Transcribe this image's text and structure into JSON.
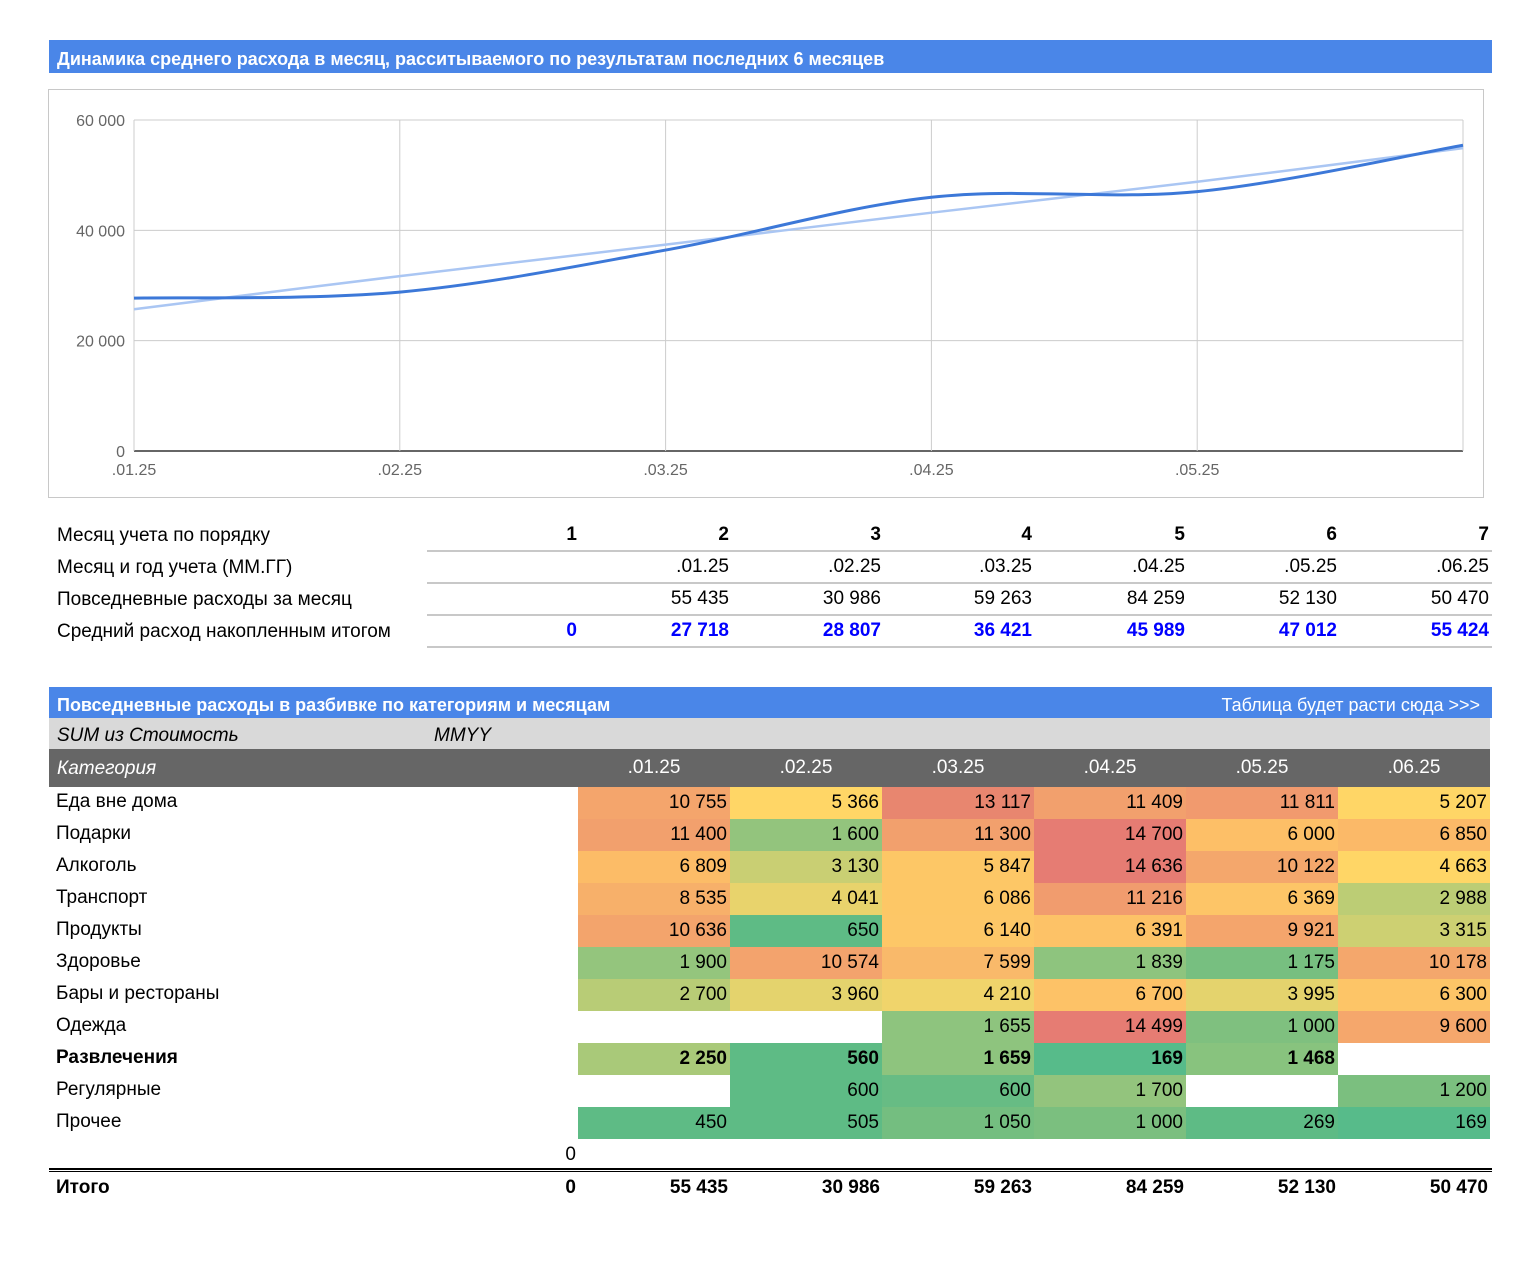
{
  "chart_title": "Динамика среднего расхода в месяц, расситываемого по результатам последних 6 месяцев",
  "chart_data": {
    "type": "line",
    "x": [
      ".01.25",
      ".02.25",
      ".03.25",
      ".04.25",
      ".05.25",
      ".06.25"
    ],
    "series": [
      {
        "values": [
          27718,
          28807,
          36421,
          45989,
          47012,
          55424
        ],
        "color": "#3c78d8"
      },
      {
        "values": [
          25700,
          31700,
          37400,
          43200,
          48800,
          54900
        ],
        "color": "#aac6f3"
      }
    ],
    "xticks": [
      ".01.25",
      ".02.25",
      ".03.25",
      ".04.25",
      ".05.25"
    ],
    "yticks": [
      "0",
      "20 000",
      "40 000",
      "60 000"
    ],
    "ylim": [
      0,
      60000
    ],
    "grid": true
  },
  "stats": {
    "rows": [
      {
        "label": "Месяц учета по порядку",
        "values": [
          "1",
          "2",
          "3",
          "4",
          "5",
          "6",
          "7"
        ],
        "style": "bold"
      },
      {
        "label": "Месяц и год учета (ММ.ГГ)",
        "values": [
          "",
          ".01.25",
          ".02.25",
          ".03.25",
          ".04.25",
          ".05.25",
          ".06.25"
        ],
        "style": ""
      },
      {
        "label": "Повседневные расходы за месяц",
        "values": [
          "",
          "55 435",
          "30 986",
          "59 263",
          "84 259",
          "52 130",
          "50 470"
        ],
        "style": ""
      },
      {
        "label": "Средний расход накопленным итогом",
        "values": [
          "0",
          "27 718",
          "28 807",
          "36 421",
          "45 989",
          "47 012",
          "55 424"
        ],
        "style": "blue"
      }
    ]
  },
  "pivot": {
    "title": "Повседневные расходы в разбивке по категориям и месяцам",
    "title_right": "Таблица будет расти сюда >>>",
    "sum_label": "SUM из Стоимость",
    "mmyy_label": "MMYY",
    "category_label": "Категория",
    "months": [
      ".01.25",
      ".02.25",
      ".03.25",
      ".04.25",
      ".05.25",
      ".06.25"
    ],
    "rows": [
      {
        "name": "Еда вне дома",
        "bold": false,
        "values": [
          "10 755",
          "5 366",
          "13 117",
          "11 409",
          "11 811",
          "5 207"
        ],
        "colors": [
          "#f4a56c",
          "#ffd666",
          "#e8866f",
          "#f2a06d",
          "#f19a6e",
          "#ffd666"
        ]
      },
      {
        "name": "Подарки",
        "bold": false,
        "values": [
          "11 400",
          "1 600",
          "11 300",
          "14 700",
          "6 000",
          "6 850"
        ],
        "colors": [
          "#f2a06d",
          "#93c47d",
          "#f2a06d",
          "#e67c73",
          "#fdbf67",
          "#fbb968"
        ]
      },
      {
        "name": "Алкоголь",
        "bold": false,
        "values": [
          "6 809",
          "3 130",
          "5 847",
          "14 636",
          "10 122",
          "4 663"
        ],
        "colors": [
          "#fcbc67",
          "#c9cf73",
          "#fdc766",
          "#e67c73",
          "#f4a76c",
          "#ffd666"
        ]
      },
      {
        "name": "Транспорт",
        "bold": false,
        "values": [
          "8 535",
          "4 041",
          "6 086",
          "11 216",
          "6 369",
          "2 988"
        ],
        "colors": [
          "#f7b06a",
          "#e8d36c",
          "#fdc766",
          "#f19c6e",
          "#fdc567",
          "#bccd75"
        ]
      },
      {
        "name": "Продукты",
        "bold": false,
        "values": [
          "10 636",
          "650",
          "6 140",
          "6 391",
          "9 921",
          "3 315"
        ],
        "colors": [
          "#f3a46c",
          "#5ebb85",
          "#fdc767",
          "#fdc267",
          "#f4a56c",
          "#cdd072"
        ]
      },
      {
        "name": "Здоровье",
        "bold": false,
        "values": [
          "1 900",
          "10 574",
          "7 599",
          "1 839",
          "1 175",
          "10 178"
        ],
        "colors": [
          "#94c57d",
          "#f3a36d",
          "#f9b96a",
          "#8ec47e",
          "#77bf80",
          "#f4a76c"
        ]
      },
      {
        "name": "Бары и рестораны",
        "bold": false,
        "values": [
          "2 700",
          "3 960",
          "4 210",
          "6 700",
          "3 995",
          "6 300"
        ],
        "colors": [
          "#b8cc76",
          "#e4d36d",
          "#f0d46b",
          "#fdc267",
          "#e4d36d",
          "#fdc567"
        ]
      },
      {
        "name": "Одежда",
        "bold": false,
        "values": [
          "",
          "",
          "1 655",
          "14 499",
          "1 000",
          "9 600"
        ],
        "colors": [
          "#ffffff",
          "#ffffff",
          "#8ec47e",
          "#e67c73",
          "#7fc07f",
          "#f5a76c"
        ]
      },
      {
        "name": "Развлечения",
        "bold": true,
        "values": [
          "2 250",
          "560",
          "1 659",
          "169",
          "1 468",
          ""
        ],
        "colors": [
          "#a9c979",
          "#5ebb85",
          "#8ec47e",
          "#57bb8a",
          "#88c37e",
          "#ffffff"
        ]
      },
      {
        "name": "Регулярные",
        "bold": false,
        "values": [
          "",
          "600",
          "600",
          "1 700",
          "",
          "1 200"
        ],
        "colors": [
          "#ffffff",
          "#5ebb85",
          "#67bc84",
          "#93c47d",
          "#ffffff",
          "#7bbf7f"
        ]
      },
      {
        "name": "Прочее",
        "bold": false,
        "values": [
          "450",
          "505",
          "1 050",
          "1 000",
          "269",
          "169"
        ],
        "colors": [
          "#5ebb85",
          "#5ebb85",
          "#74be80",
          "#7bbf7f",
          "#5ebb85",
          "#57bb8a"
        ]
      }
    ],
    "blank_row_value": "0",
    "total": {
      "label": "Итого",
      "values": [
        "0",
        "55 435",
        "30 986",
        "59 263",
        "84 259",
        "52 130",
        "50 470"
      ]
    }
  }
}
